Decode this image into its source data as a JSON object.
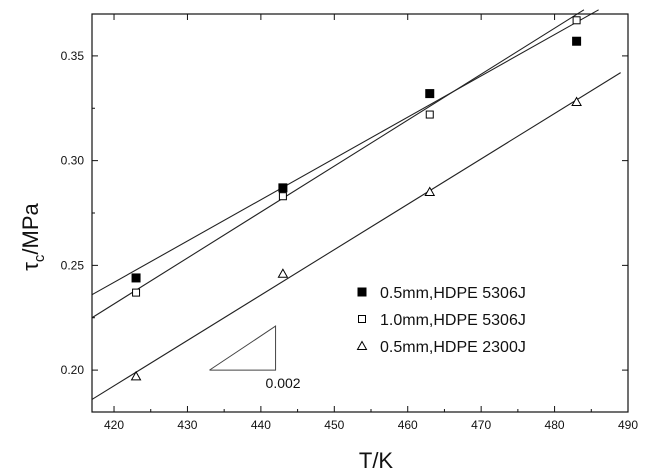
{
  "chart_data": {
    "type": "scatter",
    "title": "",
    "xlabel": "T/K",
    "ylabel_main": "τ",
    "ylabel_sub": "c",
    "ylabel_rest": "/MPa",
    "xlim": [
      417,
      490
    ],
    "ylim": [
      0.18,
      0.37
    ],
    "xticks": [
      420,
      430,
      440,
      450,
      460,
      470,
      480,
      490
    ],
    "yticks": [
      0.2,
      0.25,
      0.3,
      0.35
    ],
    "xtick_labels": [
      "420",
      "430",
      "440",
      "450",
      "460",
      "470",
      "480",
      "490"
    ],
    "ytick_labels": [
      "0.20",
      "0.25",
      "0.30",
      "0.35"
    ],
    "legend_position": "lower-right",
    "series": [
      {
        "name": "0.5mm,HDPE 5306J",
        "marker": "filled-square",
        "x": [
          423,
          443,
          463,
          483
        ],
        "y": [
          0.244,
          0.287,
          0.332,
          0.357
        ],
        "fit": [
          [
            417,
            0.236
          ],
          [
            486,
            0.372
          ]
        ]
      },
      {
        "name": "1.0mm,HDPE 5306J",
        "marker": "open-square",
        "x": [
          423,
          443,
          463,
          483
        ],
        "y": [
          0.237,
          0.283,
          0.322,
          0.367
        ],
        "fit": [
          [
            417,
            0.225
          ],
          [
            484,
            0.372
          ]
        ]
      },
      {
        "name": "0.5mm,HDPE 2300J",
        "marker": "open-triangle",
        "x": [
          423,
          443,
          463,
          483
        ],
        "y": [
          0.197,
          0.246,
          0.285,
          0.328
        ],
        "fit": [
          [
            417,
            0.186
          ],
          [
            489,
            0.342
          ]
        ]
      }
    ],
    "slope_annotation": {
      "label": "0.002",
      "x_start": 433,
      "x_end": 442,
      "y_low": 0.2,
      "y_high": 0.221
    }
  }
}
